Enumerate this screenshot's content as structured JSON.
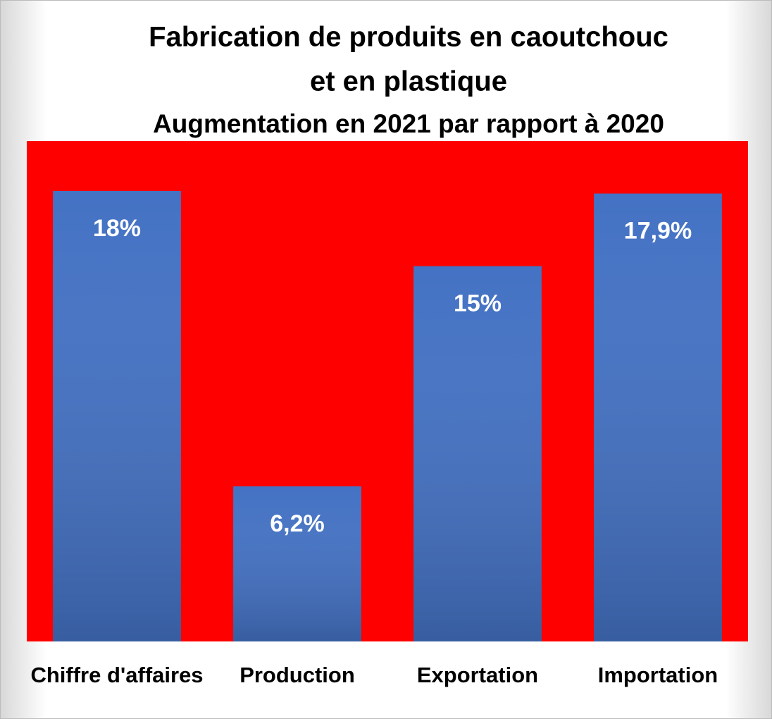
{
  "chart_data": {
    "type": "bar",
    "title": [
      "Fabrication de produits en caoutchouc",
      "et en plastique"
    ],
    "subtitle": "Augmentation en 2021 par rapport à 2020",
    "categories": [
      "Chiffre d'affaires",
      "Production",
      "Exportation",
      "Importation"
    ],
    "values": [
      18,
      6.2,
      15,
      17.9
    ],
    "value_labels": [
      "18%",
      "6,2%",
      "15%",
      "17,9%"
    ],
    "color": "#4472c4",
    "plot_background": "#ff0000",
    "ylim": [
      0,
      20
    ]
  }
}
